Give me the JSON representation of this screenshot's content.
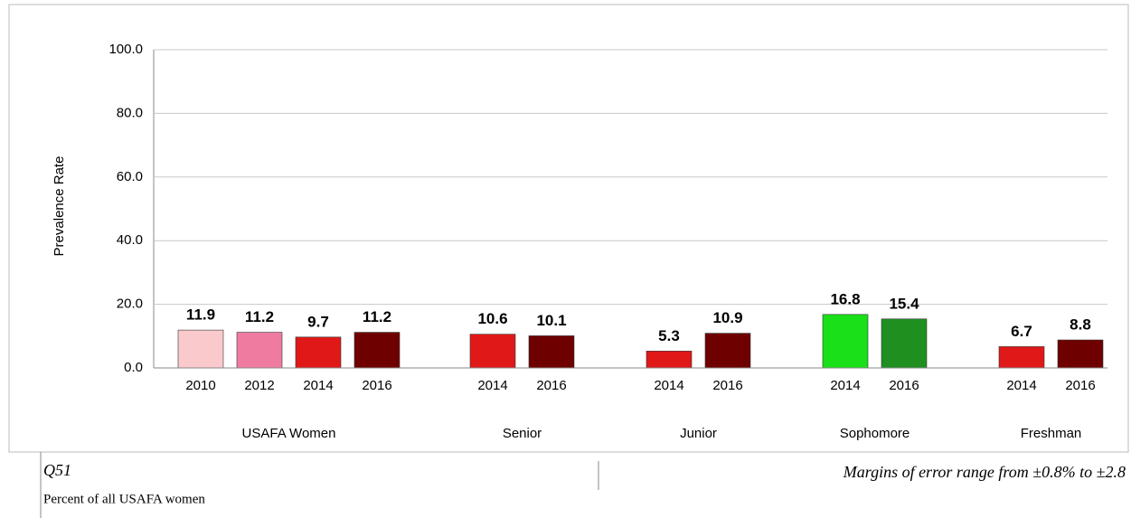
{
  "chart_data": {
    "type": "bar",
    "ylabel": "Prevalence Rate",
    "ylim": [
      0,
      100
    ],
    "yticks": [
      {
        "value": 0,
        "label": "0.0"
      },
      {
        "value": 20,
        "label": "20.0"
      },
      {
        "value": 40,
        "label": "40.0"
      },
      {
        "value": 60,
        "label": "60.0"
      },
      {
        "value": 80,
        "label": "80.0"
      },
      {
        "value": 100,
        "label": "100.0"
      }
    ],
    "grid": true,
    "groups": [
      {
        "name": "USAFA Women",
        "categories": [
          "2010",
          "2012",
          "2014",
          "2016"
        ],
        "values": [
          11.9,
          11.2,
          9.7,
          11.2
        ],
        "colors": [
          "#f9c9cc",
          "#f07ba0",
          "#e01818",
          "#6e0000"
        ]
      },
      {
        "name": "Senior",
        "categories": [
          "2014",
          "2016"
        ],
        "values": [
          10.6,
          10.1
        ],
        "colors": [
          "#e01818",
          "#6e0000"
        ]
      },
      {
        "name": "Junior",
        "categories": [
          "2014",
          "2016"
        ],
        "values": [
          5.3,
          10.9
        ],
        "colors": [
          "#e01818",
          "#6e0000"
        ]
      },
      {
        "name": "Sophomore",
        "categories": [
          "2014",
          "2016"
        ],
        "values": [
          16.8,
          15.4
        ],
        "colors": [
          "#19e019",
          "#1f8f1f"
        ]
      },
      {
        "name": "Freshman",
        "categories": [
          "2014",
          "2016"
        ],
        "values": [
          6.7,
          8.8
        ],
        "colors": [
          "#e01818",
          "#6e0000"
        ]
      }
    ]
  },
  "footer": {
    "question": "Q51",
    "margins": "Margins of error range from ±0.8% to ±2.8",
    "note": "Percent of all USAFA women"
  }
}
